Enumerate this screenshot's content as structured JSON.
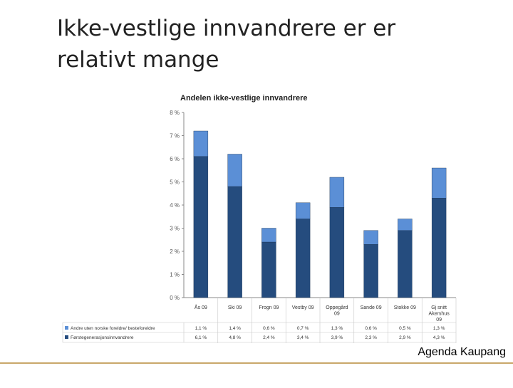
{
  "slide": {
    "title_lines": [
      "Ikke-vestlige innvandrere er er",
      "relativt mange"
    ],
    "footer": "Agenda Kaupang",
    "accent_color": "#c9a76a"
  },
  "chart_data": {
    "type": "bar",
    "stacked": true,
    "title": "Andelen ikke-vestlige innvandrere",
    "xlabel": "",
    "ylabel": "",
    "ylim": [
      0,
      8
    ],
    "yticks": [
      "0 %",
      "1 %",
      "2 %",
      "3 %",
      "4 %",
      "5 %",
      "6 %",
      "7 %",
      "8 %"
    ],
    "grid": false,
    "legend": "table-below",
    "categories": [
      [
        "Ås 09"
      ],
      [
        "Ski 09"
      ],
      [
        "Frogn 09"
      ],
      [
        "Vestby 09"
      ],
      [
        "Oppegård",
        "09"
      ],
      [
        "Sande 09"
      ],
      [
        "Stokke 09"
      ],
      [
        "Gj snitt",
        "Akershus",
        "09"
      ]
    ],
    "series": [
      {
        "name": "Førstegenerasjonsinnvandrere",
        "color": "#254c7e",
        "values": [
          6.1,
          4.8,
          2.4,
          3.4,
          3.9,
          2.3,
          2.9,
          4.3
        ],
        "labels": [
          "6,1 %",
          "4,8 %",
          "2,4 %",
          "3,4 %",
          "3,9 %",
          "2,3 %",
          "2,9 %",
          "4,3 %"
        ]
      },
      {
        "name": "Andre uten norske foreldre/ besteforeldre",
        "color": "#5b8fd6",
        "values": [
          1.1,
          1.4,
          0.6,
          0.7,
          1.3,
          0.6,
          0.5,
          1.3
        ],
        "labels": [
          "1,1 %",
          "1,4 %",
          "0,6 %",
          "0,7 %",
          "1,3 %",
          "0,6 %",
          "0,5 %",
          "1,3 %"
        ]
      }
    ]
  }
}
